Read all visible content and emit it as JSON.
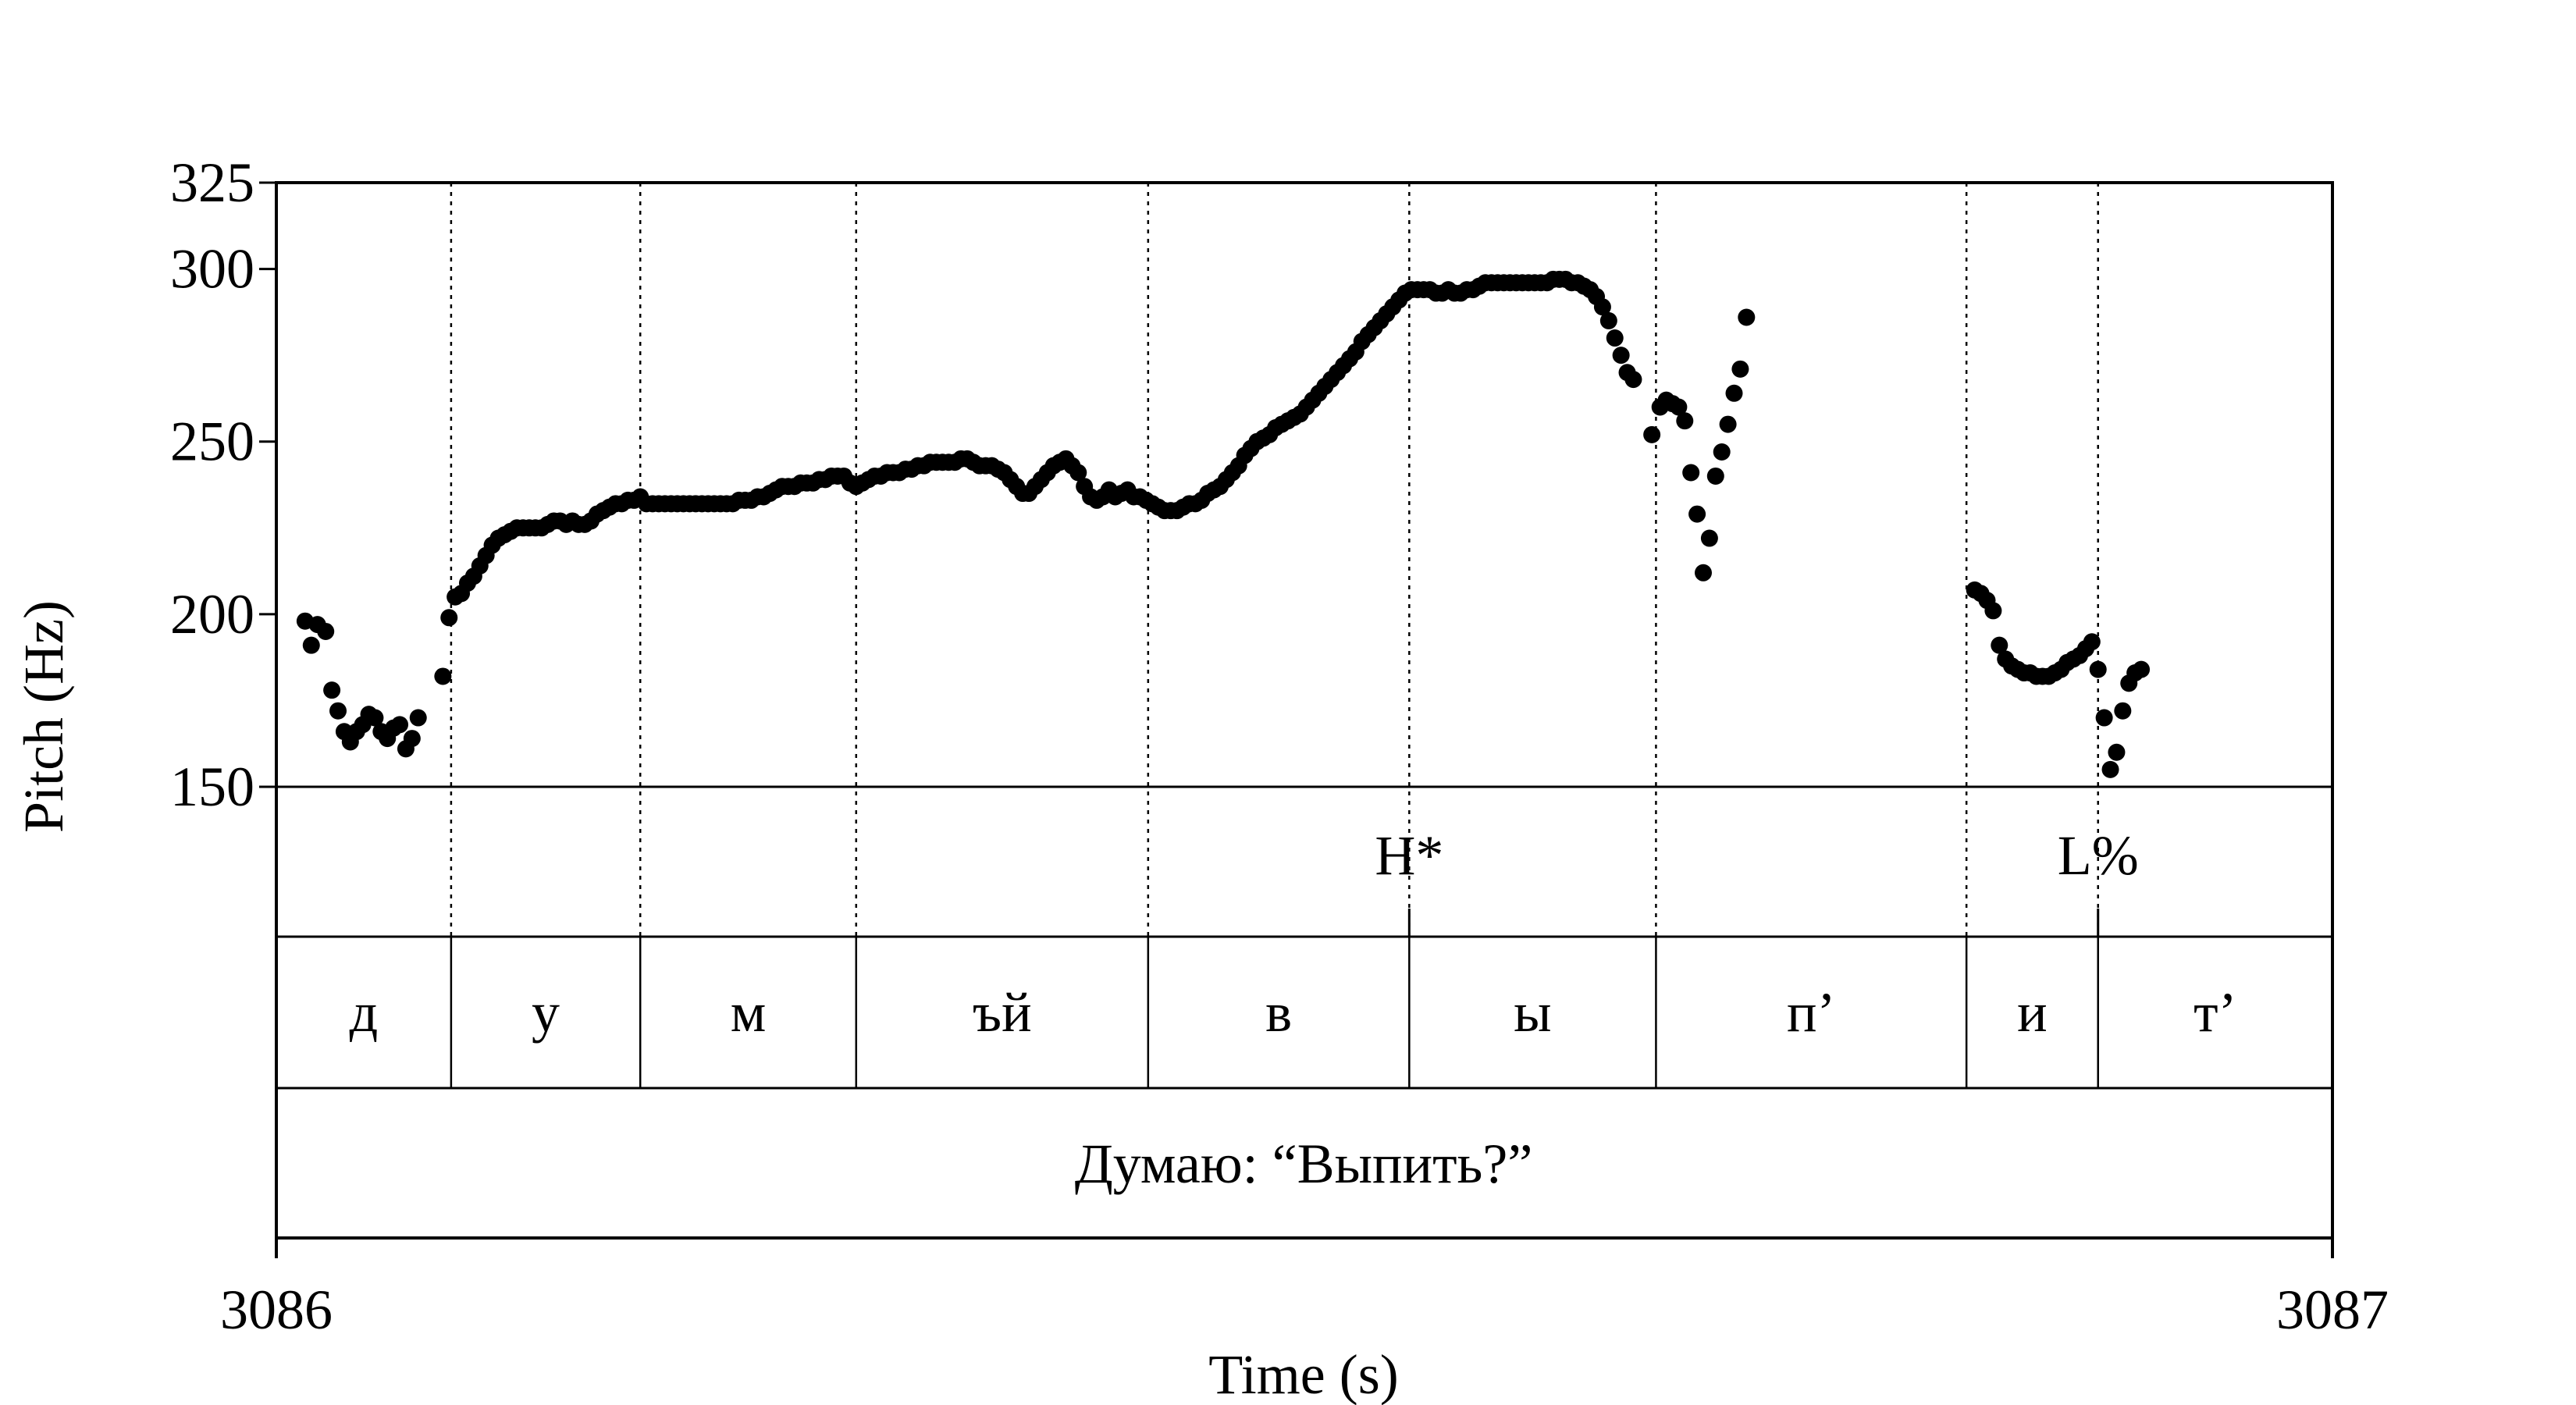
{
  "chart_data": {
    "type": "scatter",
    "xlabel": "Time (s)",
    "ylabel": "Pitch (Hz)",
    "xlim": [
      0,
      1
    ],
    "x_tick_labels": [
      "3086",
      "3087"
    ],
    "ylim": [
      150,
      325
    ],
    "yticks": [
      150,
      200,
      250,
      300,
      325
    ],
    "grid": false,
    "point_color": "#000000",
    "segment_boundaries": [
      0.085,
      0.177,
      0.282,
      0.424,
      0.551,
      0.671,
      0.822,
      0.886
    ],
    "tones": [
      {
        "label": "H*",
        "x": 0.551
      },
      {
        "label": "L%",
        "x": 0.886
      }
    ],
    "segments": [
      {
        "label": "д",
        "start": 0.0,
        "end": 0.085
      },
      {
        "label": "у",
        "start": 0.085,
        "end": 0.177
      },
      {
        "label": "м",
        "start": 0.177,
        "end": 0.282
      },
      {
        "label": "ъй",
        "start": 0.282,
        "end": 0.424
      },
      {
        "label": "в",
        "start": 0.424,
        "end": 0.551
      },
      {
        "label": "ы",
        "start": 0.551,
        "end": 0.671
      },
      {
        "label": "п’",
        "start": 0.671,
        "end": 0.822
      },
      {
        "label": "и",
        "start": 0.822,
        "end": 0.886
      },
      {
        "label": "т’",
        "start": 0.886,
        "end": 1.0
      }
    ],
    "utterance": "Думаю: “Выпить?”",
    "pitch_track": [
      [
        0.014,
        198
      ],
      [
        0.017,
        191
      ],
      [
        0.02,
        197
      ],
      [
        0.024,
        195
      ],
      [
        0.027,
        178
      ],
      [
        0.03,
        172
      ],
      [
        0.033,
        166
      ],
      [
        0.036,
        163
      ],
      [
        0.039,
        166
      ],
      [
        0.042,
        168
      ],
      [
        0.045,
        171
      ],
      [
        0.048,
        170
      ],
      [
        0.051,
        166
      ],
      [
        0.054,
        164
      ],
      [
        0.057,
        167
      ],
      [
        0.06,
        168
      ],
      [
        0.063,
        161
      ],
      [
        0.066,
        164
      ],
      [
        0.069,
        170
      ],
      [
        0.081,
        182
      ],
      [
        0.084,
        199
      ],
      [
        0.087,
        205
      ],
      [
        0.09,
        206
      ],
      [
        0.093,
        209
      ],
      [
        0.096,
        211
      ],
      [
        0.099,
        214
      ],
      [
        0.102,
        217
      ],
      [
        0.105,
        220
      ],
      [
        0.108,
        222
      ],
      [
        0.111,
        223
      ],
      [
        0.114,
        224
      ],
      [
        0.117,
        225
      ],
      [
        0.12,
        225
      ],
      [
        0.123,
        225
      ],
      [
        0.126,
        225
      ],
      [
        0.129,
        225
      ],
      [
        0.132,
        226
      ],
      [
        0.135,
        227
      ],
      [
        0.138,
        227
      ],
      [
        0.141,
        226
      ],
      [
        0.144,
        227
      ],
      [
        0.147,
        226
      ],
      [
        0.15,
        226
      ],
      [
        0.153,
        227
      ],
      [
        0.156,
        229
      ],
      [
        0.159,
        230
      ],
      [
        0.162,
        231
      ],
      [
        0.165,
        232
      ],
      [
        0.168,
        232
      ],
      [
        0.171,
        233
      ],
      [
        0.174,
        233
      ],
      [
        0.177,
        234
      ],
      [
        0.18,
        232
      ],
      [
        0.183,
        232
      ],
      [
        0.186,
        232
      ],
      [
        0.189,
        232
      ],
      [
        0.192,
        232
      ],
      [
        0.195,
        232
      ],
      [
        0.198,
        232
      ],
      [
        0.201,
        232
      ],
      [
        0.204,
        232
      ],
      [
        0.207,
        232
      ],
      [
        0.21,
        232
      ],
      [
        0.213,
        232
      ],
      [
        0.216,
        232
      ],
      [
        0.219,
        232
      ],
      [
        0.222,
        232
      ],
      [
        0.225,
        233
      ],
      [
        0.228,
        233
      ],
      [
        0.231,
        233
      ],
      [
        0.234,
        234
      ],
      [
        0.237,
        234
      ],
      [
        0.24,
        235
      ],
      [
        0.243,
        236
      ],
      [
        0.246,
        237
      ],
      [
        0.249,
        237
      ],
      [
        0.252,
        237
      ],
      [
        0.255,
        238
      ],
      [
        0.258,
        238
      ],
      [
        0.261,
        238
      ],
      [
        0.264,
        239
      ],
      [
        0.267,
        239
      ],
      [
        0.27,
        240
      ],
      [
        0.273,
        240
      ],
      [
        0.276,
        240
      ],
      [
        0.279,
        238
      ],
      [
        0.282,
        237
      ],
      [
        0.285,
        238
      ],
      [
        0.288,
        239
      ],
      [
        0.291,
        240
      ],
      [
        0.294,
        240
      ],
      [
        0.297,
        241
      ],
      [
        0.3,
        241
      ],
      [
        0.303,
        241
      ],
      [
        0.306,
        242
      ],
      [
        0.309,
        242
      ],
      [
        0.312,
        243
      ],
      [
        0.315,
        243
      ],
      [
        0.318,
        244
      ],
      [
        0.321,
        244
      ],
      [
        0.324,
        244
      ],
      [
        0.327,
        244
      ],
      [
        0.33,
        244
      ],
      [
        0.333,
        245
      ],
      [
        0.336,
        245
      ],
      [
        0.339,
        244
      ],
      [
        0.342,
        243
      ],
      [
        0.345,
        243
      ],
      [
        0.348,
        243
      ],
      [
        0.351,
        242
      ],
      [
        0.354,
        241
      ],
      [
        0.357,
        239
      ],
      [
        0.36,
        237
      ],
      [
        0.363,
        235
      ],
      [
        0.366,
        235
      ],
      [
        0.369,
        237
      ],
      [
        0.372,
        239
      ],
      [
        0.375,
        241
      ],
      [
        0.378,
        243
      ],
      [
        0.381,
        244
      ],
      [
        0.384,
        245
      ],
      [
        0.387,
        243
      ],
      [
        0.39,
        241
      ],
      [
        0.393,
        237
      ],
      [
        0.396,
        234
      ],
      [
        0.399,
        233
      ],
      [
        0.402,
        234
      ],
      [
        0.405,
        236
      ],
      [
        0.408,
        234
      ],
      [
        0.411,
        235
      ],
      [
        0.414,
        236
      ],
      [
        0.417,
        234
      ],
      [
        0.42,
        234
      ],
      [
        0.423,
        233
      ],
      [
        0.426,
        232
      ],
      [
        0.429,
        231
      ],
      [
        0.432,
        230
      ],
      [
        0.435,
        230
      ],
      [
        0.438,
        230
      ],
      [
        0.441,
        231
      ],
      [
        0.444,
        232
      ],
      [
        0.447,
        232
      ],
      [
        0.45,
        233
      ],
      [
        0.453,
        235
      ],
      [
        0.456,
        236
      ],
      [
        0.459,
        237
      ],
      [
        0.462,
        239
      ],
      [
        0.465,
        241
      ],
      [
        0.468,
        243
      ],
      [
        0.471,
        246
      ],
      [
        0.474,
        248
      ],
      [
        0.477,
        250
      ],
      [
        0.48,
        251
      ],
      [
        0.483,
        252
      ],
      [
        0.486,
        254
      ],
      [
        0.489,
        255
      ],
      [
        0.492,
        256
      ],
      [
        0.495,
        257
      ],
      [
        0.498,
        258
      ],
      [
        0.501,
        260
      ],
      [
        0.504,
        262
      ],
      [
        0.507,
        264
      ],
      [
        0.51,
        266
      ],
      [
        0.513,
        268
      ],
      [
        0.516,
        270
      ],
      [
        0.519,
        272
      ],
      [
        0.522,
        274
      ],
      [
        0.525,
        276
      ],
      [
        0.528,
        279
      ],
      [
        0.531,
        281
      ],
      [
        0.534,
        283
      ],
      [
        0.537,
        285
      ],
      [
        0.54,
        287
      ],
      [
        0.543,
        289
      ],
      [
        0.546,
        291
      ],
      [
        0.549,
        293
      ],
      [
        0.552,
        294
      ],
      [
        0.555,
        294
      ],
      [
        0.558,
        294
      ],
      [
        0.561,
        294
      ],
      [
        0.564,
        293
      ],
      [
        0.567,
        293
      ],
      [
        0.57,
        294
      ],
      [
        0.573,
        293
      ],
      [
        0.576,
        293
      ],
      [
        0.579,
        294
      ],
      [
        0.582,
        294
      ],
      [
        0.585,
        295
      ],
      [
        0.588,
        296
      ],
      [
        0.591,
        296
      ],
      [
        0.594,
        296
      ],
      [
        0.597,
        296
      ],
      [
        0.6,
        296
      ],
      [
        0.603,
        296
      ],
      [
        0.606,
        296
      ],
      [
        0.609,
        296
      ],
      [
        0.612,
        296
      ],
      [
        0.615,
        296
      ],
      [
        0.618,
        296
      ],
      [
        0.621,
        297
      ],
      [
        0.624,
        297
      ],
      [
        0.627,
        297
      ],
      [
        0.63,
        296
      ],
      [
        0.633,
        296
      ],
      [
        0.636,
        295
      ],
      [
        0.639,
        294
      ],
      [
        0.642,
        292
      ],
      [
        0.645,
        289
      ],
      [
        0.648,
        285
      ],
      [
        0.651,
        280
      ],
      [
        0.654,
        275
      ],
      [
        0.657,
        270
      ],
      [
        0.66,
        268
      ],
      [
        0.669,
        252
      ],
      [
        0.673,
        260
      ],
      [
        0.676,
        262
      ],
      [
        0.679,
        261
      ],
      [
        0.682,
        260
      ],
      [
        0.685,
        256
      ],
      [
        0.688,
        241
      ],
      [
        0.691,
        229
      ],
      [
        0.694,
        212
      ],
      [
        0.697,
        222
      ],
      [
        0.7,
        240
      ],
      [
        0.703,
        247
      ],
      [
        0.706,
        255
      ],
      [
        0.709,
        264
      ],
      [
        0.712,
        271
      ],
      [
        0.715,
        286
      ],
      [
        0.826,
        207
      ],
      [
        0.829,
        206
      ],
      [
        0.832,
        204
      ],
      [
        0.835,
        201
      ],
      [
        0.838,
        191
      ],
      [
        0.841,
        187
      ],
      [
        0.844,
        185
      ],
      [
        0.847,
        184
      ],
      [
        0.85,
        183
      ],
      [
        0.853,
        183
      ],
      [
        0.856,
        182
      ],
      [
        0.859,
        182
      ],
      [
        0.862,
        182
      ],
      [
        0.865,
        183
      ],
      [
        0.868,
        184
      ],
      [
        0.871,
        186
      ],
      [
        0.874,
        187
      ],
      [
        0.877,
        188
      ],
      [
        0.88,
        190
      ],
      [
        0.883,
        192
      ],
      [
        0.886,
        184
      ],
      [
        0.889,
        170
      ],
      [
        0.892,
        155
      ],
      [
        0.895,
        160
      ],
      [
        0.898,
        172
      ],
      [
        0.901,
        180
      ],
      [
        0.904,
        183
      ],
      [
        0.907,
        184
      ]
    ]
  }
}
